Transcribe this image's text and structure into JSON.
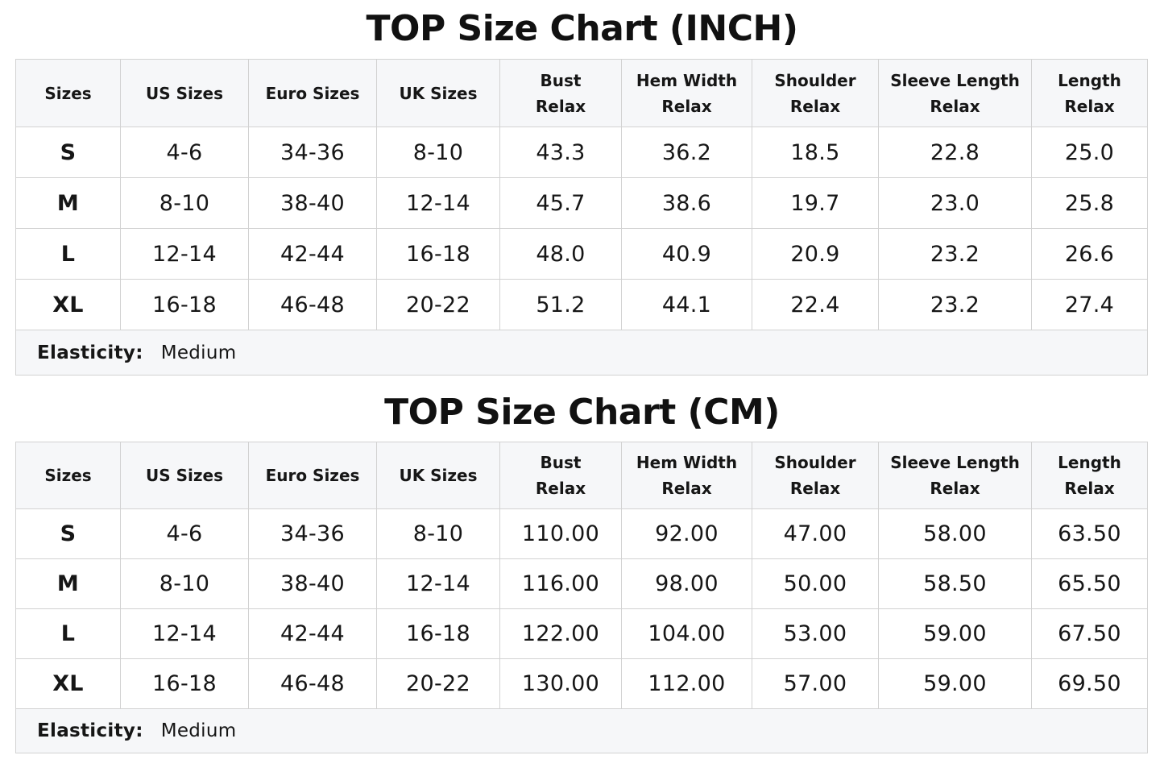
{
  "inch_chart": {
    "title": "TOP Size Chart (INCH)",
    "headers": [
      [
        "Sizes"
      ],
      [
        "US Sizes"
      ],
      [
        "Euro Sizes"
      ],
      [
        "UK Sizes"
      ],
      [
        "Bust",
        "Relax"
      ],
      [
        "Hem Width",
        "Relax"
      ],
      [
        "Shoulder",
        "Relax"
      ],
      [
        "Sleeve Length",
        "Relax"
      ],
      [
        "Length",
        "Relax"
      ]
    ],
    "rows": [
      [
        "S",
        "4-6",
        "34-36",
        "8-10",
        "43.3",
        "36.2",
        "18.5",
        "22.8",
        "25.0"
      ],
      [
        "M",
        "8-10",
        "38-40",
        "12-14",
        "45.7",
        "38.6",
        "19.7",
        "23.0",
        "25.8"
      ],
      [
        "L",
        "12-14",
        "42-44",
        "16-18",
        "48.0",
        "40.9",
        "20.9",
        "23.2",
        "26.6"
      ],
      [
        "XL",
        "16-18",
        "46-48",
        "20-22",
        "51.2",
        "44.1",
        "22.4",
        "23.2",
        "27.4"
      ]
    ],
    "elasticity_label": "Elasticity:",
    "elasticity_value": "Medium"
  },
  "cm_chart": {
    "title": "TOP Size Chart (CM)",
    "headers": [
      [
        "Sizes"
      ],
      [
        "US Sizes"
      ],
      [
        "Euro Sizes"
      ],
      [
        "UK Sizes"
      ],
      [
        "Bust",
        "Relax"
      ],
      [
        "Hem Width",
        "Relax"
      ],
      [
        "Shoulder",
        "Relax"
      ],
      [
        "Sleeve Length",
        "Relax"
      ],
      [
        "Length",
        "Relax"
      ]
    ],
    "rows": [
      [
        "S",
        "4-6",
        "34-36",
        "8-10",
        "110.00",
        "92.00",
        "47.00",
        "58.00",
        "63.50"
      ],
      [
        "M",
        "8-10",
        "38-40",
        "12-14",
        "116.00",
        "98.00",
        "50.00",
        "58.50",
        "65.50"
      ],
      [
        "L",
        "12-14",
        "42-44",
        "16-18",
        "122.00",
        "104.00",
        "53.00",
        "59.00",
        "67.50"
      ],
      [
        "XL",
        "16-18",
        "46-48",
        "20-22",
        "130.00",
        "112.00",
        "57.00",
        "59.00",
        "69.50"
      ]
    ],
    "elasticity_label": "Elasticity:",
    "elasticity_value": "Medium"
  },
  "colors": {
    "header_background": "#f6f7f9",
    "border": "#d2d2d2",
    "text": "#161616"
  }
}
